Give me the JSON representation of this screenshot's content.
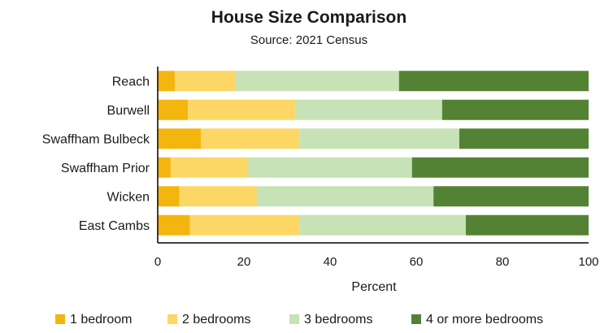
{
  "chart_data": {
    "type": "bar",
    "orientation": "horizontal",
    "stacked": true,
    "title": "House Size Comparison",
    "subtitle": "Source: 2021 Census",
    "xlabel": "Percent",
    "ylabel": "",
    "xlim": [
      0,
      100
    ],
    "x_ticks": [
      0,
      20,
      40,
      60,
      80,
      100
    ],
    "grid": false,
    "legend_position": "bottom",
    "categories": [
      "Reach",
      "Burwell",
      "Swaffham Bulbeck",
      "Swaffham Prior",
      "Wicken",
      "East Cambs"
    ],
    "series": [
      {
        "name": "1 bedroom",
        "color": "#f5b50f",
        "values": [
          4,
          7,
          10,
          3,
          5,
          7.5
        ]
      },
      {
        "name": "2 bedrooms",
        "color": "#fcd766",
        "values": [
          14,
          25,
          23,
          18,
          18,
          25.5
        ]
      },
      {
        "name": "3 bedrooms",
        "color": "#c6e2b6",
        "values": [
          38,
          34,
          37,
          38,
          41,
          38.5
        ]
      },
      {
        "name": "4 or more bedrooms",
        "color": "#548235",
        "values": [
          44,
          34,
          30,
          41,
          36,
          28.5
        ]
      }
    ]
  }
}
